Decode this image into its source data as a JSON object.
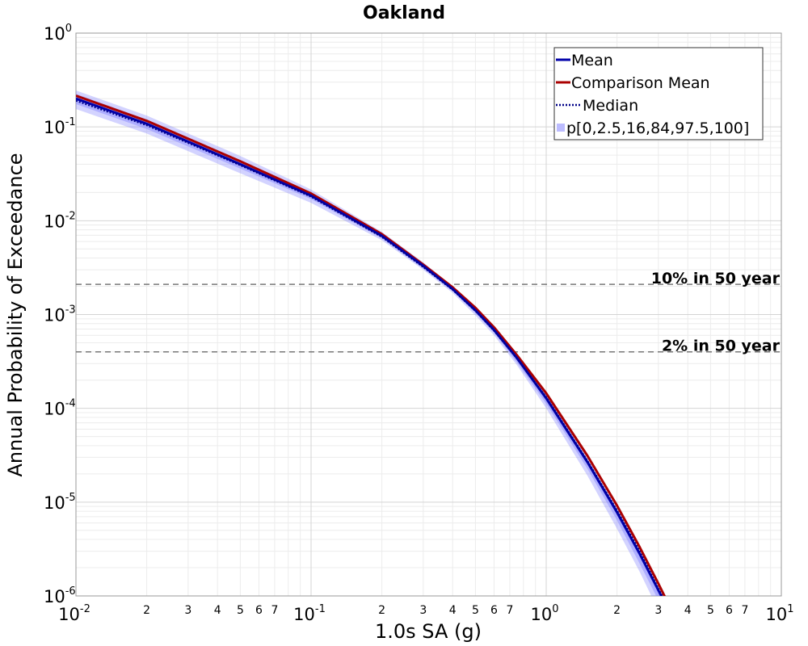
{
  "chart_data": {
    "type": "line",
    "title": "Oakland",
    "xlabel": "1.0s SA (g)",
    "ylabel": "Annual Probability of Exceedance",
    "x_scale": "log",
    "y_scale": "log",
    "xlim": [
      0.01,
      10
    ],
    "ylim": [
      1e-06,
      1
    ],
    "grid": true,
    "legend_position": "top-right",
    "x_tick_labels": [
      {
        "base": "10",
        "exp": "-2"
      },
      {
        "base": "10",
        "exp": "-1"
      },
      {
        "base": "10",
        "exp": "0"
      },
      {
        "base": "10",
        "exp": "1"
      }
    ],
    "x_minor_tick_labels": [
      "2",
      "3",
      "4",
      "5",
      "6",
      "7"
    ],
    "y_tick_labels": [
      {
        "base": "10",
        "exp": "-6"
      },
      {
        "base": "10",
        "exp": "-5"
      },
      {
        "base": "10",
        "exp": "-4"
      },
      {
        "base": "10",
        "exp": "-3"
      },
      {
        "base": "10",
        "exp": "-2"
      },
      {
        "base": "10",
        "exp": "-1"
      },
      {
        "base": "10",
        "exp": "0"
      }
    ],
    "x": [
      0.01,
      0.02,
      0.05,
      0.1,
      0.2,
      0.3,
      0.4,
      0.5,
      0.6,
      0.75,
      1.0,
      1.5,
      2.0,
      2.5,
      3.0,
      3.5
    ],
    "series": [
      {
        "name": "Mean",
        "color": "#0000aa",
        "style": "solid",
        "values": [
          0.2,
          0.108,
          0.04,
          0.0185,
          0.0069,
          0.0033,
          0.00187,
          0.00111,
          0.000685,
          0.000345,
          0.000128,
          2.65e-05,
          7.8e-06,
          2.8e-06,
          1.15e-06,
          5.4e-07
        ]
      },
      {
        "name": "Comparison Mean",
        "color": "#aa0000",
        "style": "solid",
        "values": [
          0.215,
          0.116,
          0.043,
          0.0195,
          0.0072,
          0.0034,
          0.00195,
          0.00118,
          0.00073,
          0.00037,
          0.000145,
          3.1e-05,
          9.2e-06,
          3.3e-06,
          1.35e-06,
          6.2e-07
        ]
      },
      {
        "name": "Median",
        "color": "#000088",
        "style": "dotted",
        "values": [
          0.19,
          0.104,
          0.039,
          0.018,
          0.0067,
          0.0032,
          0.00183,
          0.00109,
          0.00067,
          0.00034,
          0.000132,
          2.75e-05,
          8.2e-06,
          3e-06,
          1.2e-06,
          5.7e-07
        ]
      }
    ],
    "percentile_band": {
      "name": "p[0,2.5,16,84,97.5,100]",
      "color": "#8080ff",
      "lower": [
        0.155,
        0.085,
        0.032,
        0.0155,
        0.0062,
        0.003,
        0.0017,
        0.00098,
        0.0006,
        0.00029,
        0.0001,
        1.9e-05,
        5.2e-06,
        1.8e-06,
        7e-07,
        3.2e-07
      ],
      "inner_lower": [
        0.175,
        0.095,
        0.036,
        0.017,
        0.0065,
        0.0031,
        0.00178,
        0.00104,
        0.00064,
        0.00031,
        0.000112,
        2.25e-05,
        6.4e-06,
        2.2e-06,
        9e-07,
        4.2e-07
      ],
      "inner_upper": [
        0.225,
        0.12,
        0.044,
        0.0198,
        0.0072,
        0.00342,
        0.00194,
        0.00116,
        0.00071,
        0.00036,
        0.000138,
        2.85e-05,
        8.4e-06,
        3e-06,
        1.2e-06,
        5.6e-07
      ],
      "upper": [
        0.245,
        0.132,
        0.049,
        0.0215,
        0.0076,
        0.0036,
        0.002,
        0.0012,
        0.000735,
        0.000375,
        0.000142,
        2.9e-05,
        8.6e-06,
        3.1e-06,
        1.25e-06,
        5.8e-07
      ]
    },
    "reference_lines": [
      {
        "label": "10% in 50 year",
        "y": 0.0021
      },
      {
        "label": "2% in 50 year",
        "y": 0.0004
      }
    ]
  }
}
